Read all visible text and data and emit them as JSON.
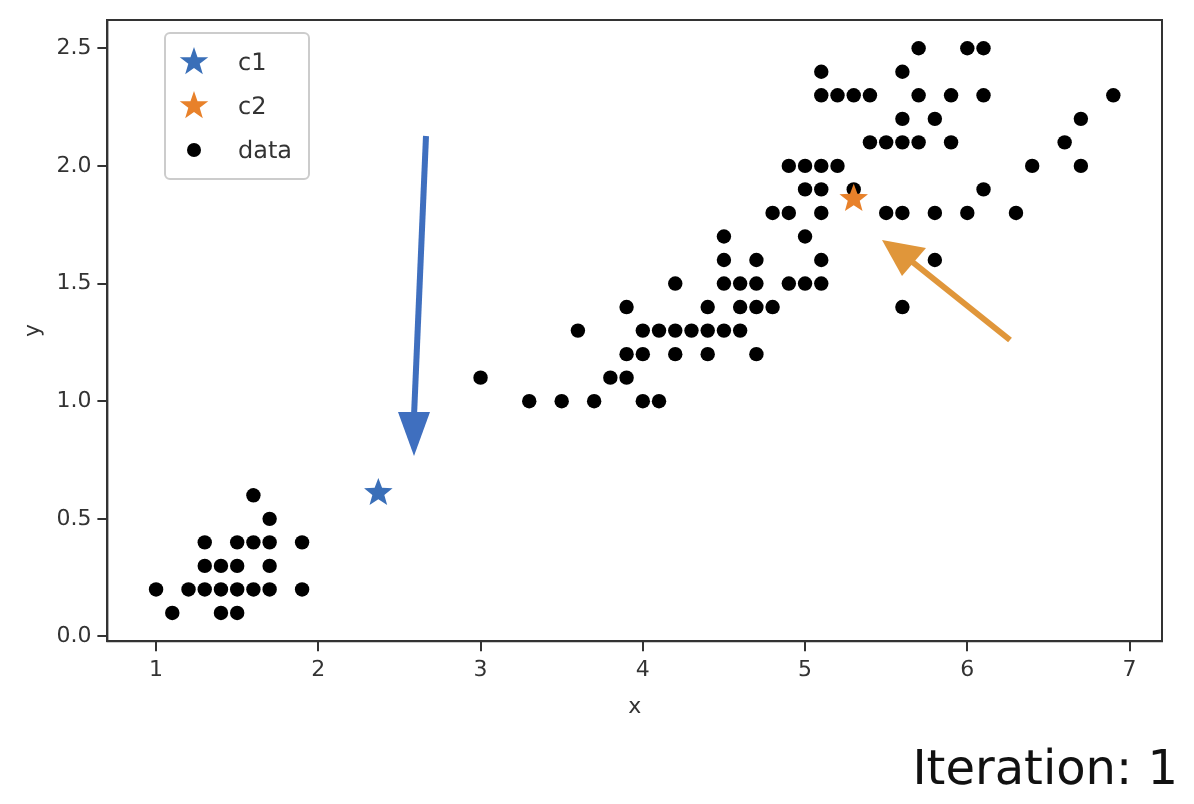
{
  "chart_data": {
    "type": "scatter",
    "xlabel": "x",
    "ylabel": "y",
    "annotations": [
      "Iteration: 1"
    ],
    "xlim": [
      0.7,
      7.2
    ],
    "xticks": [
      1,
      2,
      3,
      4,
      5,
      6,
      7
    ],
    "ylim": [
      -0.02,
      2.62
    ],
    "yticks": [
      {
        "value": 0,
        "label": "0.0"
      },
      0.5,
      {
        "value": 1,
        "label": "1.0"
      },
      1.5,
      {
        "value": 2,
        "label": "2.0"
      },
      2.5
    ],
    "grid": false,
    "legend": "top left",
    "series": [
      {
        "name": "c1",
        "color": "#3a6fb8",
        "marker": "star",
        "x": [
          2.37
        ],
        "values": [
          0.61
        ]
      },
      {
        "name": "c2",
        "color": "#e8812a",
        "marker": "star",
        "x": [
          5.3
        ],
        "values": [
          1.86
        ]
      },
      {
        "name": "data",
        "color": "#000000",
        "marker": "circle",
        "x": [
          1.6,
          1.7,
          1.3,
          1.5,
          1.6,
          1.7,
          1.9,
          1.3,
          1.4,
          1.5,
          1.7,
          1.0,
          1.2,
          1.3,
          1.4,
          1.5,
          1.6,
          1.7,
          1.9,
          1.1,
          1.4,
          1.5,
          3.3,
          3.5,
          3.7,
          4.0,
          4.1,
          3.0,
          3.8,
          3.9,
          3.9,
          4.0,
          4.2,
          4.4,
          4.7,
          3.6,
          4.0,
          4.1,
          4.2,
          4.3,
          4.4,
          4.5,
          4.6,
          3.9,
          4.4,
          4.6,
          4.7,
          4.8,
          5.6,
          4.2,
          4.5,
          4.6,
          4.7,
          4.9,
          5.0,
          5.1,
          4.5,
          4.7,
          5.1,
          5.8,
          4.5,
          5.0,
          4.8,
          4.9,
          5.1,
          5.5,
          5.6,
          5.8,
          6.0,
          6.3,
          5.0,
          5.1,
          5.3,
          6.1,
          4.9,
          5.0,
          5.1,
          5.2,
          6.4,
          6.7,
          5.4,
          5.5,
          5.6,
          5.7,
          5.9,
          6.6,
          5.6,
          5.8,
          6.7,
          5.1,
          5.2,
          5.3,
          5.4,
          5.7,
          5.9,
          6.1,
          6.9,
          5.1,
          5.6,
          5.7,
          6.0,
          6.1
        ],
        "values": [
          0.6,
          0.5,
          0.4,
          0.4,
          0.4,
          0.4,
          0.4,
          0.3,
          0.3,
          0.3,
          0.3,
          0.2,
          0.2,
          0.2,
          0.2,
          0.2,
          0.2,
          0.2,
          0.2,
          0.1,
          0.1,
          0.1,
          1.0,
          1.0,
          1.0,
          1.0,
          1.0,
          1.1,
          1.1,
          1.1,
          1.2,
          1.2,
          1.2,
          1.2,
          1.2,
          1.3,
          1.3,
          1.3,
          1.3,
          1.3,
          1.3,
          1.3,
          1.3,
          1.4,
          1.4,
          1.4,
          1.4,
          1.4,
          1.4,
          1.5,
          1.5,
          1.5,
          1.5,
          1.5,
          1.5,
          1.5,
          1.6,
          1.6,
          1.6,
          1.6,
          1.7,
          1.7,
          1.8,
          1.8,
          1.8,
          1.8,
          1.8,
          1.8,
          1.8,
          1.8,
          1.9,
          1.9,
          1.9,
          1.9,
          2.0,
          2.0,
          2.0,
          2.0,
          2.0,
          2.0,
          2.1,
          2.1,
          2.1,
          2.1,
          2.1,
          2.1,
          2.2,
          2.2,
          2.2,
          2.3,
          2.3,
          2.3,
          2.3,
          2.3,
          2.3,
          2.3,
          2.3,
          2.4,
          2.4,
          2.5,
          2.5,
          2.5
        ]
      }
    ]
  }
}
